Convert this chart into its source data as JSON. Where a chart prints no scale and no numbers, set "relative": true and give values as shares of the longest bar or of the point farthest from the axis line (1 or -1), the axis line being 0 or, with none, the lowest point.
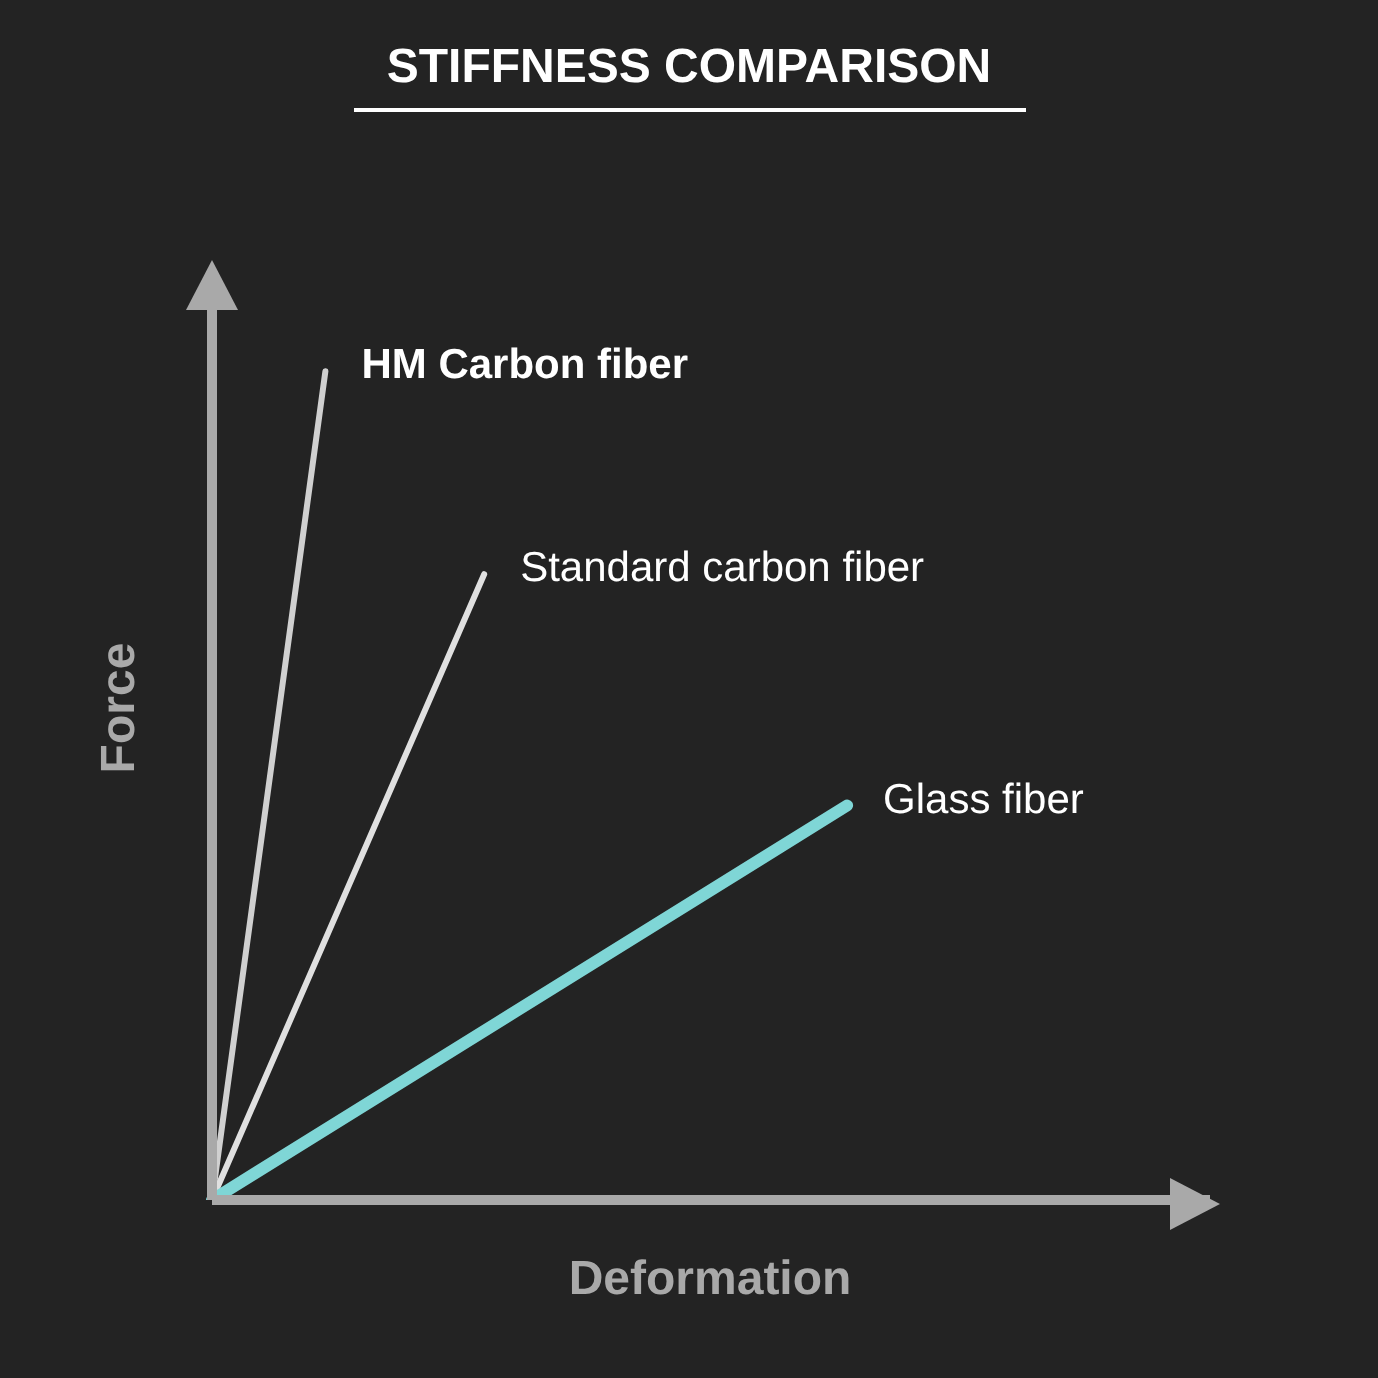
{
  "chart_data": {
    "type": "line",
    "title": "STIFFNESS COMPARISON",
    "xlabel": "Deformation",
    "ylabel": "Force",
    "relative": true,
    "grid": false,
    "legend": false,
    "marker": "none",
    "line_style": "solid",
    "categories": [
      null,
      null,
      null,
      null,
      null,
      null,
      null,
      null,
      null,
      null,
      null,
      null,
      null,
      null,
      null,
      null,
      null,
      null,
      null,
      null,
      null,
      null,
      null,
      null,
      null,
      null,
      null,
      null,
      null,
      null,
      null,
      null,
      null,
      null,
      null,
      null,
      null,
      null,
      null,
      null,
      null,
      null,
      null,
      null,
      null
    ],
    "series": [
      {
        "name": "HM Carbon fiber",
        "color": "#d0d0d0",
        "values": [
          0,
          null,
          null,
          null,
          null,
          1,
          null,
          null,
          null,
          null,
          null,
          null,
          null,
          null,
          null,
          null,
          null,
          null,
          null,
          null,
          null,
          null,
          null,
          null,
          null,
          null,
          null,
          null,
          null,
          null,
          null,
          null,
          null,
          null,
          null,
          null,
          null,
          null,
          null,
          null,
          null,
          null,
          null,
          null,
          null
        ]
      },
      {
        "name": "Standard carbon fiber",
        "color": "#e0e0e0",
        "values": [
          0,
          null,
          null,
          null,
          null,
          null,
          null,
          null,
          null,
          null,
          null,
          null,
          0.755,
          null,
          null,
          null,
          null,
          null,
          null,
          null,
          null,
          null,
          null,
          null,
          null,
          null,
          null,
          null,
          null,
          null,
          null,
          null,
          null,
          null,
          null,
          null,
          null,
          null,
          null,
          null,
          null,
          null,
          null,
          null,
          null
        ]
      },
      {
        "name": "Glass fiber",
        "color": "#7fd6d6",
        "values": [
          0,
          null,
          null,
          null,
          null,
          null,
          null,
          null,
          null,
          null,
          null,
          null,
          null,
          null,
          null,
          null,
          null,
          null,
          null,
          null,
          null,
          null,
          null,
          null,
          null,
          null,
          null,
          null,
          0.476,
          null,
          null,
          null,
          null,
          null,
          null,
          null,
          null,
          null,
          null,
          null,
          null,
          null,
          null,
          null,
          null
        ]
      }
    ]
  }
}
